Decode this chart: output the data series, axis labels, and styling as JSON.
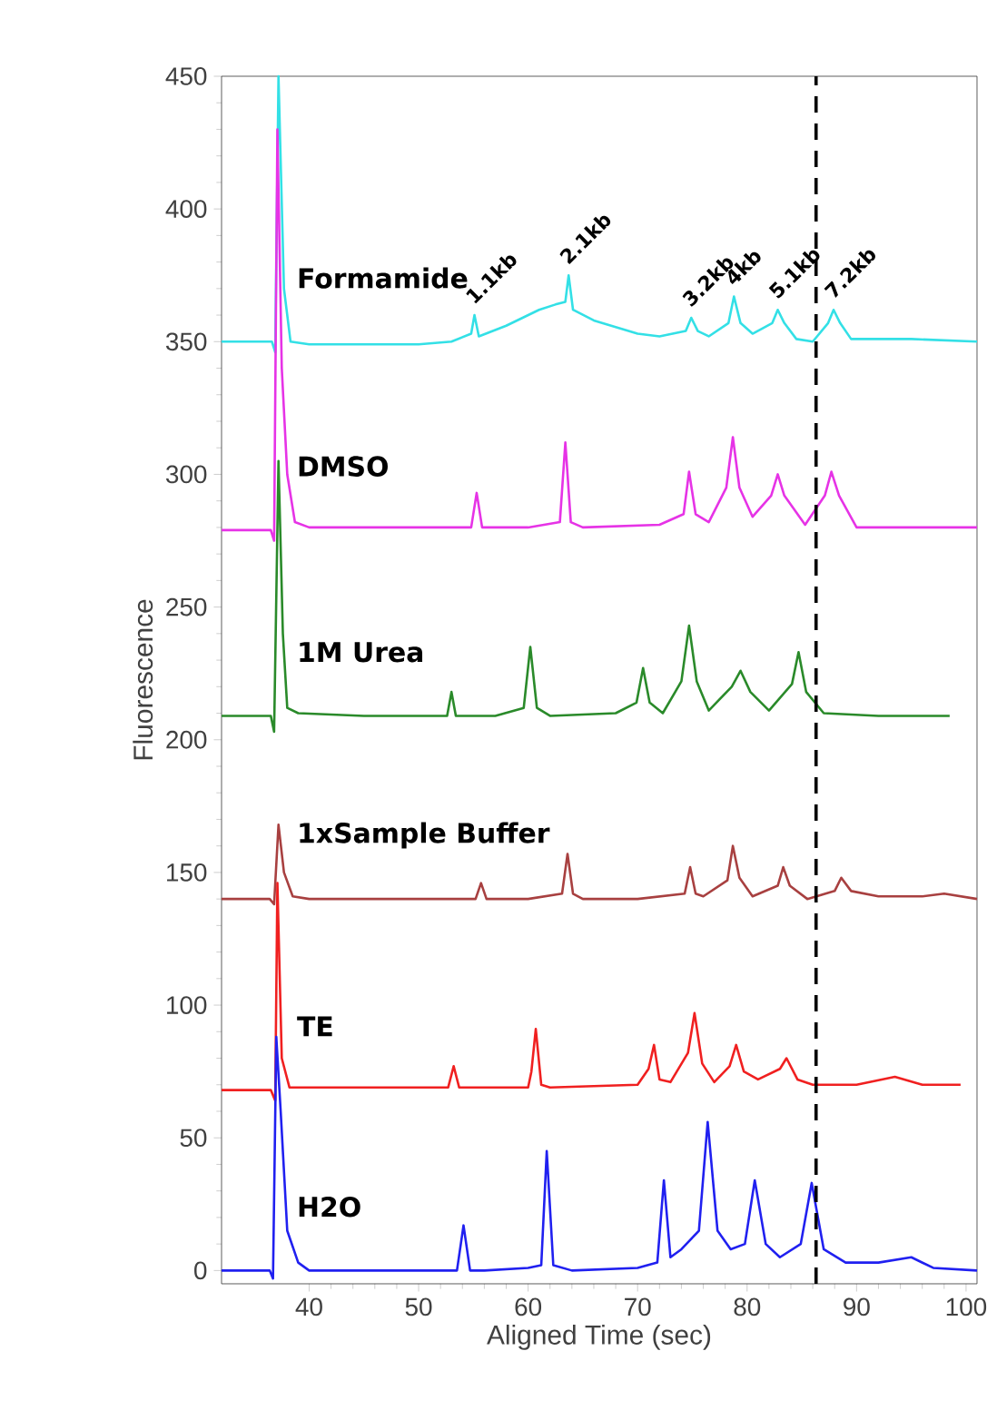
{
  "chart_data": {
    "type": "line",
    "xlabel": "Aligned Time (sec)",
    "ylabel": "Fluorescence",
    "xlim": [
      32,
      101
    ],
    "ylim": [
      -5,
      450
    ],
    "xticks": [
      40,
      50,
      60,
      70,
      80,
      90,
      100
    ],
    "yticks": [
      0,
      50,
      100,
      150,
      200,
      250,
      300,
      350,
      400,
      450
    ],
    "grid": false,
    "legend": false,
    "marker": "none",
    "line_style": "solid",
    "series": [
      {
        "name": "Formamide",
        "color": "#33e0e6",
        "x": [
          32,
          36.6,
          36.9,
          37.2,
          37.7,
          38.3,
          40,
          45,
          50,
          53,
          54.8,
          55.1,
          55.5,
          58,
          61,
          62.5,
          63.4,
          63.7,
          64.1,
          66,
          70,
          72,
          74.4,
          74.9,
          75.5,
          76.5,
          78.3,
          78.8,
          79.4,
          80.5,
          82.3,
          82.8,
          83.4,
          84.5,
          86,
          87.4,
          87.9,
          88.5,
          89.5,
          95,
          101
        ],
        "values": [
          350,
          350,
          346,
          450,
          370,
          350,
          349,
          349,
          349,
          350,
          353,
          360,
          352,
          356,
          362,
          364,
          365,
          375,
          362,
          358,
          353,
          352,
          354,
          359,
          354,
          352,
          357,
          367,
          357,
          353,
          357,
          362,
          357,
          351,
          350,
          357,
          362,
          357,
          351,
          351,
          350
        ]
      },
      {
        "name": "DMSO",
        "color": "#e633e6",
        "x": [
          32,
          36.5,
          36.8,
          37.1,
          37.5,
          38,
          38.7,
          40,
          54.8,
          55.3,
          55.8,
          60,
          62.9,
          63.4,
          63.9,
          65,
          72,
          74.2,
          74.7,
          75.3,
          76.5,
          78.1,
          78.7,
          79.3,
          80.5,
          82.2,
          82.8,
          83.4,
          85.3,
          87.1,
          87.7,
          88.4,
          90,
          95,
          101
        ],
        "values": [
          279,
          279,
          275,
          430,
          340,
          300,
          282,
          280,
          280,
          293,
          280,
          280,
          282,
          312,
          282,
          280,
          281,
          285,
          301,
          285,
          282,
          295,
          314,
          295,
          284,
          292,
          300,
          292,
          281,
          292,
          301,
          292,
          280,
          280,
          280
        ]
      },
      {
        "name": "1M Urea",
        "color": "#2a8a2a",
        "x": [
          32,
          36.5,
          36.8,
          37.2,
          37.6,
          38,
          39,
          45,
          52.6,
          53,
          53.4,
          57,
          59.6,
          60.2,
          60.8,
          62,
          68,
          69.9,
          70.5,
          71.1,
          72.3,
          74,
          74.7,
          75.4,
          76.5,
          78.6,
          79.4,
          80.3,
          82,
          84.1,
          84.7,
          85.4,
          87,
          92,
          98.5
        ],
        "values": [
          209,
          209,
          203,
          305,
          240,
          212,
          210,
          209,
          209,
          218,
          209,
          209,
          212,
          235,
          212,
          209,
          210,
          214,
          227,
          214,
          210,
          222,
          243,
          222,
          211,
          220,
          226,
          218,
          211,
          221,
          233,
          218,
          210,
          209,
          209
        ]
      },
      {
        "name": "1xSample Buffer",
        "color": "#a84040",
        "x": [
          32,
          36.4,
          36.8,
          37.2,
          37.7,
          38.5,
          40,
          50,
          55.2,
          55.7,
          56.2,
          60,
          63.1,
          63.6,
          64.1,
          65,
          70,
          74.3,
          74.8,
          75.3,
          76,
          78.2,
          78.7,
          79.3,
          80.5,
          82.8,
          83.3,
          83.9,
          85.5,
          88,
          88.6,
          89.5,
          92,
          96,
          98,
          101
        ],
        "values": [
          140,
          140,
          138,
          168,
          150,
          141,
          140,
          140,
          140,
          146,
          140,
          140,
          142,
          157,
          142,
          140,
          140,
          142,
          152,
          142,
          141,
          147,
          160,
          148,
          141,
          145,
          152,
          145,
          140,
          143,
          148,
          143,
          141,
          141,
          142,
          140
        ]
      },
      {
        "name": "TE",
        "color": "#f02020",
        "x": [
          32,
          36.5,
          36.9,
          37.1,
          37.5,
          38.2,
          40,
          50,
          52.7,
          53.2,
          53.7,
          55,
          60,
          60.3,
          60.7,
          61.2,
          62,
          70,
          71.0,
          71.5,
          72.0,
          73,
          74.6,
          75.2,
          75.9,
          77,
          78.4,
          79,
          79.7,
          81,
          83,
          83.6,
          84.6,
          86,
          90,
          93.5,
          96,
          99.5
        ],
        "values": [
          68,
          68,
          64,
          146,
          80,
          69,
          69,
          69,
          69,
          77,
          69,
          69,
          69,
          75,
          91,
          70,
          69,
          70,
          76,
          85,
          72,
          71,
          82,
          97,
          78,
          71,
          77,
          85,
          75,
          72,
          76,
          80,
          72,
          70,
          70,
          73,
          70,
          70
        ]
      },
      {
        "name": "H2O",
        "color": "#2020f0",
        "x": [
          32,
          36.4,
          36.7,
          37.0,
          37.4,
          38,
          39,
          40,
          45,
          50,
          53.5,
          54.1,
          54.7,
          56,
          60,
          61.2,
          61.7,
          62.3,
          64,
          70,
          71.8,
          72.4,
          73.0,
          74,
          75.6,
          76.4,
          77.3,
          78.5,
          79.8,
          80.7,
          81.7,
          83,
          84.9,
          85.9,
          87,
          89,
          92,
          95,
          97,
          101
        ],
        "values": [
          0,
          0,
          -3,
          88,
          60,
          15,
          3,
          0,
          0,
          0,
          0,
          17,
          0,
          0,
          1,
          2,
          45,
          2,
          0,
          1,
          3,
          34,
          5,
          8,
          15,
          56,
          15,
          8,
          10,
          34,
          10,
          5,
          10,
          33,
          8,
          3,
          3,
          5,
          1,
          0
        ]
      }
    ],
    "annotations": [
      {
        "text": "1.1kb",
        "x": 55.1,
        "y": 360
      },
      {
        "text": "2.1kb",
        "x": 63.7,
        "y": 375
      },
      {
        "text": "3.2kb",
        "x": 74.9,
        "y": 359
      },
      {
        "text": "4kb",
        "x": 78.8,
        "y": 367
      },
      {
        "text": "5.1kb",
        "x": 82.8,
        "y": 362
      },
      {
        "text": "7.2kb",
        "x": 87.9,
        "y": 362
      }
    ],
    "ref_lines": [
      {
        "axis": "x",
        "value": 86.3,
        "color": "#000000",
        "line_style": "dashed"
      }
    ]
  }
}
